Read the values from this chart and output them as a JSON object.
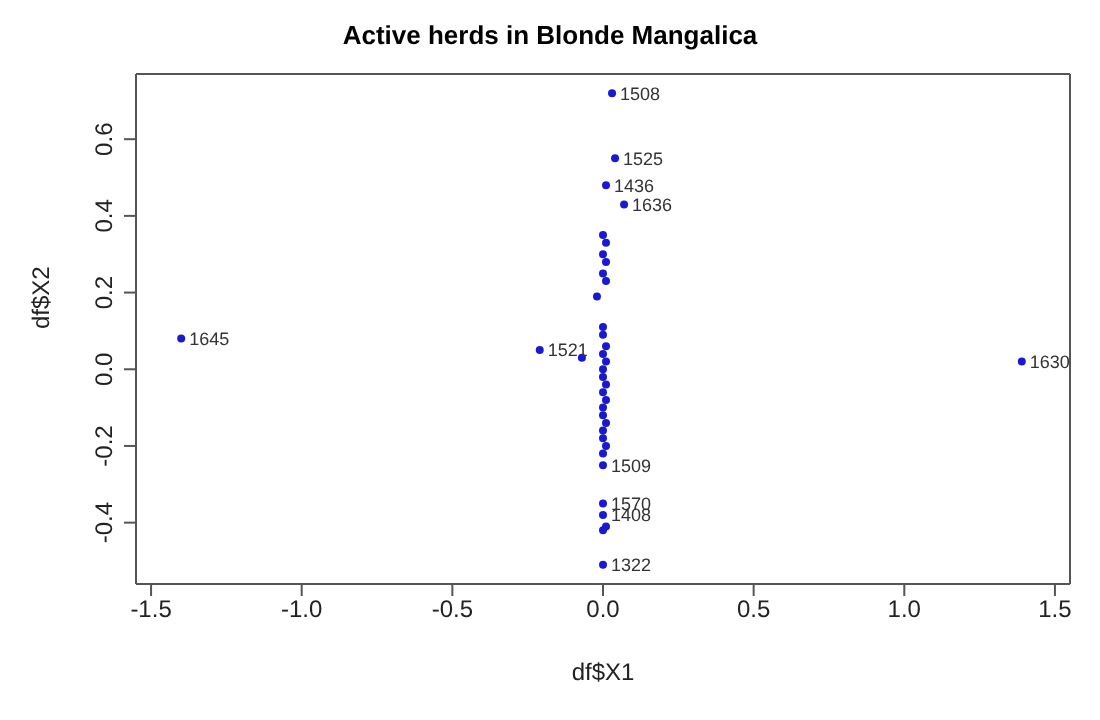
{
  "chart_data": {
    "type": "scatter",
    "title": "Active herds in Blonde Mangalica",
    "xlabel": "df$X1",
    "ylabel": "df$X2",
    "xlim": [
      -1.55,
      1.55
    ],
    "ylim": [
      -0.56,
      0.77
    ],
    "xticks": [
      {
        "value": -1.5,
        "label": "-1.5"
      },
      {
        "value": -1,
        "label": "-1.0"
      },
      {
        "value": -0.5,
        "label": "-0.5"
      },
      {
        "value": 0,
        "label": "0.0"
      },
      {
        "value": 0.5,
        "label": "0.5"
      },
      {
        "value": 1,
        "label": "1.0"
      },
      {
        "value": 1.5,
        "label": "1.5"
      }
    ],
    "yticks": [
      {
        "value": -0.4,
        "label": "-0.4"
      },
      {
        "value": -0.2,
        "label": "-0.2"
      },
      {
        "value": 0,
        "label": "0.0"
      },
      {
        "value": 0.2,
        "label": "0.2"
      },
      {
        "value": 0.4,
        "label": "0.4"
      },
      {
        "value": 0.6,
        "label": "0.6"
      }
    ],
    "legend": false,
    "marker": "circle",
    "series": [
      {
        "color": "#1a1acc",
        "x": [
          -1.4,
          -0.21,
          1.39,
          0.03,
          0.04,
          0.01,
          0.07,
          -0.07,
          0.0,
          0.01,
          0.0,
          0.01,
          0.0,
          0.01,
          -0.02,
          0.0,
          0.0,
          0.01,
          0.0,
          0.01,
          0.0,
          0.0,
          0.01,
          0.0,
          0.01,
          0.0,
          0.0,
          0.01,
          0.0,
          0.0,
          0.01,
          0.0,
          0.0,
          0.0,
          0.0,
          0.01,
          0.0,
          0.0
        ],
        "values": [
          0.08,
          0.05,
          0.02,
          0.72,
          0.55,
          0.48,
          0.43,
          0.03,
          0.35,
          0.33,
          0.3,
          0.28,
          0.25,
          0.23,
          0.19,
          0.11,
          0.09,
          0.06,
          0.04,
          0.02,
          0.0,
          -0.02,
          -0.04,
          -0.06,
          -0.08,
          -0.1,
          -0.12,
          -0.14,
          -0.16,
          -0.18,
          -0.2,
          -0.22,
          -0.25,
          -0.35,
          -0.38,
          -0.41,
          -0.42,
          -0.51
        ]
      }
    ],
    "annotations": [
      {
        "text": "1645",
        "x": -1.4,
        "y": 0.08
      },
      {
        "text": "1521",
        "x": -0.21,
        "y": 0.05
      },
      {
        "text": "1630",
        "x": 1.39,
        "y": 0.02
      },
      {
        "text": "1508",
        "x": 0.03,
        "y": 0.72
      },
      {
        "text": "1525",
        "x": 0.04,
        "y": 0.55
      },
      {
        "text": "1436",
        "x": 0.01,
        "y": 0.48
      },
      {
        "text": "1636",
        "x": 0.07,
        "y": 0.43
      },
      {
        "text": "1509",
        "x": 0.0,
        "y": -0.25
      },
      {
        "text": "1570",
        "x": 0.0,
        "y": -0.35
      },
      {
        "text": "1408",
        "x": 0.0,
        "y": -0.38
      },
      {
        "text": "1322",
        "x": 0.0,
        "y": -0.51
      }
    ]
  }
}
